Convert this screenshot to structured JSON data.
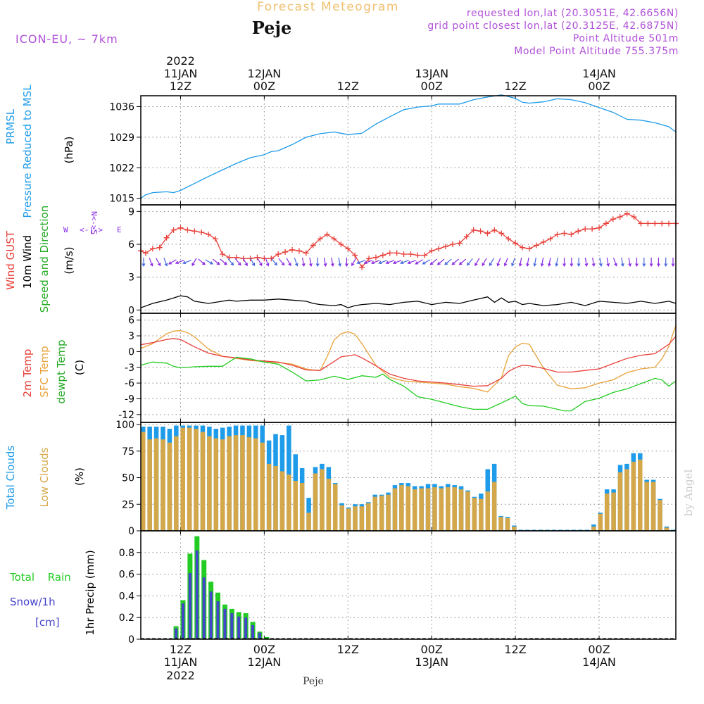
{
  "header": {
    "title": "Forecast Meteogram",
    "place": "Peje",
    "model": "ICON-EU, ~ 7km",
    "requested": "requested lon,lat (20.3051E, 42.6656N)",
    "grid_point": "grid point closest lon,lat (20.3125E, 42.6875N)",
    "point_altitude": "Point Altitude 501m",
    "model_altitude": "Model Point Altitude 755.375m",
    "credit": "by Angel",
    "bottom_place": "Peje"
  },
  "colors": {
    "pressure": "#1e9be9",
    "gust": "#e8403a",
    "wind": "#000000",
    "direction": "#8a2be2",
    "temp2m": "#e8403a",
    "sfc": "#e8a23a",
    "dewpt": "#22cc22",
    "total_cloud": "#1e9be9",
    "low_cloud": "#d4a84a",
    "rain": "#22cc22",
    "snow": "#4444cc",
    "meta": "#b050d8",
    "title": "#f0c070"
  },
  "time_axis": {
    "top_ticks": [
      {
        "hour": 12,
        "l1": "12Z",
        "l2": "11JAN",
        "l3": "2022"
      },
      {
        "hour": 24,
        "l1": "00Z",
        "l2": "12JAN",
        "l3": ""
      },
      {
        "hour": 36,
        "l1": "12Z",
        "l2": "",
        "l3": ""
      },
      {
        "hour": 48,
        "l1": "00Z",
        "l2": "13JAN",
        "l3": ""
      },
      {
        "hour": 60,
        "l1": "12Z",
        "l2": "",
        "l3": ""
      },
      {
        "hour": 72,
        "l1": "00Z",
        "l2": "14JAN",
        "l3": ""
      }
    ],
    "start_hour": 6.3,
    "end_hour": 83
  },
  "chart_data": [
    {
      "type": "line",
      "title": "PRMSL Pressure Reduced to MSL",
      "label_lines": [
        "PRMSL",
        "Pressure Reduced to MSL"
      ],
      "ylabel": "(hPa)",
      "ylim": [
        1013.5,
        1038.5
      ],
      "yticks": [
        1015,
        1022,
        1029,
        1036
      ],
      "series": [
        {
          "name": "PRMSL",
          "x": [
            6.3,
            7,
            8,
            10,
            11,
            12,
            14,
            16,
            18,
            20,
            22,
            24,
            25,
            26,
            28,
            30,
            32,
            34,
            35,
            36,
            38,
            40,
            42,
            44,
            46,
            48,
            49,
            50,
            52,
            54,
            56,
            58,
            60,
            61,
            62,
            64,
            66,
            68,
            70,
            72,
            74,
            76,
            78,
            80,
            82,
            83
          ],
          "values": [
            1015.0,
            1015.8,
            1016.3,
            1016.5,
            1016.3,
            1016.8,
            1018.4,
            1020.0,
            1021.5,
            1023.0,
            1024.3,
            1025.0,
            1025.7,
            1025.9,
            1027.3,
            1029.0,
            1029.8,
            1030.2,
            1029.9,
            1029.6,
            1029.9,
            1032.0,
            1033.7,
            1035.3,
            1035.9,
            1036.2,
            1036.6,
            1036.6,
            1036.6,
            1037.6,
            1038.2,
            1038.7,
            1037.9,
            1037.0,
            1036.8,
            1037.1,
            1037.8,
            1037.6,
            1036.9,
            1035.8,
            1034.7,
            1033.1,
            1032.9,
            1032.3,
            1031.4,
            1030.2
          ]
        }
      ]
    },
    {
      "type": "line",
      "title": "Wind GUST / 10m Wind Speed and Direction",
      "label_lines": [
        "Wind GUST",
        "10m Wind",
        "Speed and Direction"
      ],
      "ylabel": "(m/s)",
      "ylim": [
        -0.3,
        9.6
      ],
      "yticks": [
        0,
        3,
        6,
        9
      ],
      "compass": "W <-|-> E  N / S",
      "series": [
        {
          "name": "Wind GUST",
          "marker": "+",
          "x": [
            6.3,
            7,
            8,
            9,
            10,
            11,
            12,
            13,
            14,
            15,
            16,
            17,
            18,
            19,
            20,
            21,
            22,
            23,
            24,
            25,
            26,
            27,
            28,
            29,
            30,
            31,
            32,
            33,
            34,
            35,
            36,
            37,
            38,
            39,
            40,
            41,
            42,
            43,
            44,
            45,
            46,
            47,
            48,
            49,
            50,
            51,
            52,
            53,
            54,
            55,
            56,
            57,
            58,
            59,
            60,
            61,
            62,
            63,
            64,
            65,
            66,
            67,
            68,
            69,
            70,
            71,
            72,
            73,
            74,
            75,
            76,
            77,
            78,
            79,
            80,
            81,
            82,
            83
          ],
          "values": [
            5.4,
            5.2,
            5.6,
            5.7,
            6.6,
            7.3,
            7.5,
            7.3,
            7.2,
            7.1,
            6.9,
            6.5,
            5.1,
            4.8,
            4.8,
            4.7,
            4.7,
            4.8,
            4.7,
            4.7,
            5.1,
            5.3,
            5.5,
            5.4,
            5.2,
            5.9,
            6.5,
            6.9,
            6.5,
            6.0,
            5.6,
            5.0,
            3.9,
            4.7,
            4.8,
            5.0,
            5.2,
            5.2,
            5.1,
            5.1,
            5.0,
            5.0,
            5.4,
            5.6,
            5.8,
            6.0,
            6.1,
            6.7,
            7.3,
            7.2,
            7.0,
            7.3,
            7.0,
            6.5,
            6.1,
            5.7,
            5.6,
            5.9,
            6.2,
            6.5,
            6.9,
            7.0,
            6.9,
            7.2,
            7.4,
            7.4,
            7.5,
            7.9,
            8.3,
            8.5,
            8.8,
            8.5,
            7.9,
            7.9,
            7.9,
            7.9,
            7.9,
            7.9
          ]
        },
        {
          "name": "10m Wind",
          "x": [
            6.3,
            8,
            10,
            11,
            12,
            13,
            14,
            16,
            18,
            19,
            20,
            22,
            24,
            26,
            28,
            30,
            31,
            32,
            34,
            35,
            36,
            37,
            38,
            40,
            42,
            44,
            46,
            48,
            50,
            52,
            54,
            56,
            57,
            58,
            59,
            60,
            61,
            62,
            64,
            66,
            68,
            70,
            72,
            74,
            76,
            78,
            80,
            82,
            83
          ],
          "values": [
            0.2,
            0.6,
            0.9,
            1.1,
            1.3,
            1.2,
            0.8,
            0.6,
            0.8,
            0.9,
            0.8,
            0.9,
            0.9,
            1.0,
            0.9,
            0.8,
            0.6,
            0.5,
            0.4,
            0.5,
            0.2,
            0.4,
            0.5,
            0.6,
            0.5,
            0.7,
            0.8,
            0.5,
            0.7,
            0.6,
            0.9,
            1.2,
            0.7,
            1.1,
            0.7,
            0.8,
            0.5,
            0.6,
            0.4,
            0.5,
            0.7,
            0.4,
            0.8,
            0.7,
            0.6,
            0.8,
            0.6,
            0.8,
            0.6
          ]
        },
        {
          "name": "Direction arrows",
          "y_level": 4.4,
          "angles_deg": [
            90,
            70,
            60,
            70,
            150,
            160,
            160,
            120,
            40,
            30,
            40,
            40,
            50,
            50,
            60,
            60,
            60,
            70,
            50,
            50,
            60,
            70,
            80,
            80,
            90,
            80,
            80,
            80,
            90,
            120,
            160,
            160,
            160,
            160,
            160,
            160,
            160,
            160,
            150,
            150,
            140,
            140,
            140,
            140,
            140,
            130,
            120,
            120,
            120,
            110,
            110,
            110,
            100,
            100,
            100,
            100,
            100,
            100,
            90,
            90,
            90,
            80,
            80,
            80,
            80,
            70,
            80,
            80,
            90,
            90,
            90,
            90,
            90,
            90
          ]
        }
      ]
    },
    {
      "type": "line",
      "title": "2m Temp / SFC Temp / dewpt Temp",
      "label_lines": [
        "2m Temp",
        "SFC Temp",
        "dewpt Temp"
      ],
      "ylabel": "(C)",
      "ylim": [
        -13.5,
        7.3
      ],
      "yticks": [
        -12,
        -9,
        -6,
        -3,
        0,
        3,
        6
      ],
      "series": [
        {
          "name": "2m Temp",
          "x": [
            6.3,
            8,
            10,
            11,
            12,
            14,
            16,
            18,
            20,
            22,
            24,
            26,
            28,
            30,
            32,
            34,
            35,
            36,
            37,
            38,
            40,
            42,
            44,
            46,
            48,
            50,
            52,
            54,
            56,
            58,
            59,
            60,
            61,
            62,
            64,
            66,
            68,
            70,
            72,
            74,
            76,
            78,
            80,
            82,
            83
          ],
          "values": [
            1.3,
            1.7,
            2.3,
            2.5,
            2.3,
            0.9,
            -0.3,
            -0.9,
            -1.2,
            -1.6,
            -1.8,
            -2.0,
            -2.6,
            -3.5,
            -3.6,
            -1.9,
            -1.0,
            -0.8,
            -0.6,
            -1.2,
            -2.7,
            -4.3,
            -5.1,
            -5.6,
            -5.8,
            -6.0,
            -6.3,
            -6.6,
            -6.5,
            -5.1,
            -3.8,
            -3.1,
            -2.6,
            -2.7,
            -3.2,
            -3.9,
            -3.9,
            -3.6,
            -3.3,
            -2.3,
            -1.3,
            -0.7,
            -0.4,
            1.4,
            2.9
          ]
        },
        {
          "name": "SFC Temp",
          "x": [
            6.3,
            8,
            10,
            11,
            12,
            13,
            14,
            16,
            18,
            20,
            22,
            24,
            26,
            28,
            30,
            31,
            32,
            33,
            34,
            35,
            36,
            37,
            38,
            40,
            42,
            44,
            46,
            48,
            50,
            52,
            54,
            56,
            58,
            59,
            60,
            61,
            62,
            64,
            66,
            68,
            70,
            72,
            74,
            76,
            78,
            80,
            81,
            82,
            83
          ],
          "values": [
            0.6,
            1.5,
            3.4,
            3.9,
            4.0,
            3.6,
            2.8,
            0.5,
            -0.9,
            -1.3,
            -1.7,
            -1.9,
            -2.1,
            -2.4,
            -3.3,
            -3.5,
            -3.6,
            -1.0,
            2.2,
            3.4,
            3.8,
            3.3,
            1.5,
            -2.6,
            -4.9,
            -5.6,
            -5.8,
            -6.0,
            -6.2,
            -6.7,
            -7.0,
            -7.7,
            -5.0,
            -0.8,
            0.9,
            1.6,
            1.4,
            -3.1,
            -6.4,
            -7.1,
            -6.9,
            -6.0,
            -5.4,
            -4.0,
            -3.3,
            -3.0,
            -1.4,
            1.0,
            5.0
          ]
        },
        {
          "name": "dewpt Temp",
          "x": [
            6.3,
            8,
            10,
            11,
            12,
            14,
            16,
            18,
            20,
            22,
            24,
            26,
            28,
            30,
            32,
            34,
            36,
            38,
            40,
            41,
            42,
            44,
            46,
            48,
            50,
            52,
            54,
            56,
            58,
            60,
            61,
            62,
            64,
            66,
            67,
            68,
            70,
            72,
            74,
            76,
            78,
            80,
            81,
            82,
            83
          ],
          "values": [
            -2.6,
            -2.0,
            -2.2,
            -2.8,
            -3.1,
            -2.9,
            -2.8,
            -2.8,
            -1.1,
            -1.4,
            -2.0,
            -2.4,
            -3.9,
            -5.6,
            -5.4,
            -4.7,
            -5.3,
            -4.6,
            -4.9,
            -4.3,
            -5.3,
            -6.6,
            -8.6,
            -9.1,
            -9.8,
            -10.5,
            -11.0,
            -11.0,
            -9.8,
            -8.5,
            -9.9,
            -10.3,
            -10.4,
            -11.0,
            -11.3,
            -11.3,
            -9.5,
            -8.9,
            -7.8,
            -7.1,
            -6.1,
            -5.1,
            -5.4,
            -6.6,
            -5.6
          ]
        }
      ]
    },
    {
      "type": "bar",
      "title": "Total Clouds / Low Clouds",
      "label_lines": [
        "Total Clouds",
        "Low Clouds"
      ],
      "ylabel": "(%)",
      "ylim": [
        0,
        102
      ],
      "yticks": [
        0,
        25,
        50,
        75,
        100
      ],
      "x_start": 6.3,
      "series": [
        {
          "name": "Total Clouds",
          "values": [
            98,
            98,
            98,
            98,
            96,
            99,
            99,
            99,
            99,
            99,
            98,
            96,
            97,
            98,
            99,
            99,
            99,
            99,
            99,
            85,
            91,
            90,
            99,
            72,
            59,
            31,
            60,
            63,
            60,
            45,
            26,
            22,
            25,
            25,
            27,
            34,
            34,
            36,
            43,
            45,
            45,
            42,
            42,
            44,
            44,
            42,
            44,
            43,
            42,
            38,
            32,
            35,
            58,
            63,
            14,
            13,
            5,
            1,
            1,
            1,
            1,
            1,
            1,
            1,
            1,
            1,
            1,
            1,
            6,
            17,
            39,
            39,
            62,
            63,
            73,
            73,
            48,
            48,
            30,
            4,
            1
          ]
        },
        {
          "name": "Low Clouds",
          "values": [
            93,
            86,
            87,
            86,
            83,
            89,
            97,
            97,
            96,
            93,
            89,
            87,
            86,
            89,
            90,
            90,
            88,
            87,
            83,
            63,
            61,
            56,
            53,
            47,
            45,
            17,
            54,
            58,
            49,
            44,
            24,
            21,
            23,
            23,
            26,
            32,
            33,
            34,
            40,
            43,
            42,
            39,
            40,
            40,
            41,
            40,
            41,
            41,
            39,
            37,
            31,
            30,
            37,
            46,
            13,
            12,
            4,
            0,
            0,
            0,
            0,
            0,
            0,
            0,
            0,
            0,
            0,
            0,
            4,
            16,
            35,
            36,
            55,
            58,
            65,
            67,
            46,
            46,
            29,
            3,
            0
          ]
        }
      ]
    },
    {
      "type": "bar",
      "title": "Total Rain / Snow 1hr Precip",
      "label_lines": [
        "Total Rain",
        "Snow/1h",
        "[cm]"
      ],
      "ylabel": "1hr Precip (mm)",
      "ylim": [
        0,
        1.0
      ],
      "yticks": [
        0,
        0.2,
        0.4,
        0.6,
        0.8
      ],
      "ytick_labels": [
        "0",
        "0.2",
        "0.4",
        "0.6",
        "0.8"
      ],
      "x_start": 11,
      "series": [
        {
          "name": "Total Rain",
          "values": [
            0.12,
            0.36,
            0.79,
            0.95,
            0.73,
            0.53,
            0.43,
            0.32,
            0.28,
            0.25,
            0.24,
            0.16,
            0.07,
            0.02
          ]
        },
        {
          "name": "Snow/1h",
          "values": [
            0.1,
            0.33,
            0.61,
            0.82,
            0.57,
            0.44,
            0.35,
            0.28,
            0.24,
            0.21,
            0.2,
            0.13,
            0.06,
            0.01
          ]
        }
      ]
    }
  ]
}
